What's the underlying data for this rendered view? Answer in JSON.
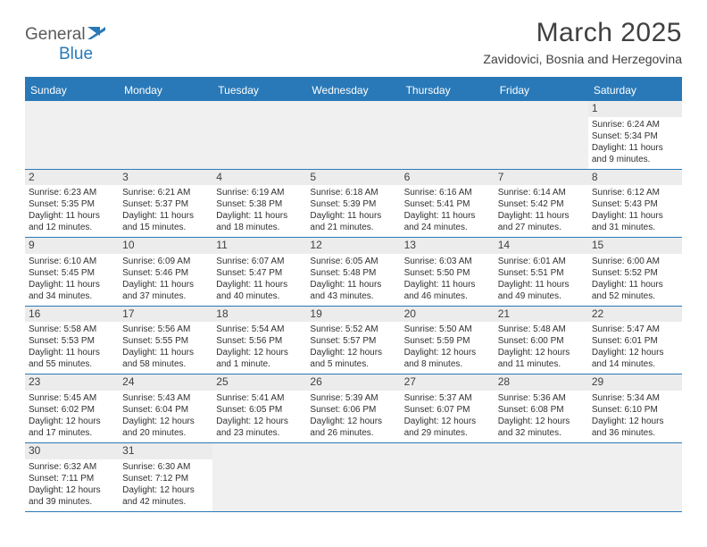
{
  "logo": {
    "text1": "General",
    "text2": "Blue"
  },
  "title": "March 2025",
  "location": "Zavidovici, Bosnia and Herzegovina",
  "colors": {
    "accent": "#2979b8",
    "text": "#404040",
    "bg": "#ffffff",
    "cellHeaderBg": "#ececec",
    "emptyBg": "#f0f0f0"
  },
  "weekdays": [
    "Sunday",
    "Monday",
    "Tuesday",
    "Wednesday",
    "Thursday",
    "Friday",
    "Saturday"
  ],
  "rows": [
    [
      null,
      null,
      null,
      null,
      null,
      null,
      {
        "d": "1",
        "sr": "Sunrise: 6:24 AM",
        "ss": "Sunset: 5:34 PM",
        "dl1": "Daylight: 11 hours",
        "dl2": "and 9 minutes."
      }
    ],
    [
      {
        "d": "2",
        "sr": "Sunrise: 6:23 AM",
        "ss": "Sunset: 5:35 PM",
        "dl1": "Daylight: 11 hours",
        "dl2": "and 12 minutes."
      },
      {
        "d": "3",
        "sr": "Sunrise: 6:21 AM",
        "ss": "Sunset: 5:37 PM",
        "dl1": "Daylight: 11 hours",
        "dl2": "and 15 minutes."
      },
      {
        "d": "4",
        "sr": "Sunrise: 6:19 AM",
        "ss": "Sunset: 5:38 PM",
        "dl1": "Daylight: 11 hours",
        "dl2": "and 18 minutes."
      },
      {
        "d": "5",
        "sr": "Sunrise: 6:18 AM",
        "ss": "Sunset: 5:39 PM",
        "dl1": "Daylight: 11 hours",
        "dl2": "and 21 minutes."
      },
      {
        "d": "6",
        "sr": "Sunrise: 6:16 AM",
        "ss": "Sunset: 5:41 PM",
        "dl1": "Daylight: 11 hours",
        "dl2": "and 24 minutes."
      },
      {
        "d": "7",
        "sr": "Sunrise: 6:14 AM",
        "ss": "Sunset: 5:42 PM",
        "dl1": "Daylight: 11 hours",
        "dl2": "and 27 minutes."
      },
      {
        "d": "8",
        "sr": "Sunrise: 6:12 AM",
        "ss": "Sunset: 5:43 PM",
        "dl1": "Daylight: 11 hours",
        "dl2": "and 31 minutes."
      }
    ],
    [
      {
        "d": "9",
        "sr": "Sunrise: 6:10 AM",
        "ss": "Sunset: 5:45 PM",
        "dl1": "Daylight: 11 hours",
        "dl2": "and 34 minutes."
      },
      {
        "d": "10",
        "sr": "Sunrise: 6:09 AM",
        "ss": "Sunset: 5:46 PM",
        "dl1": "Daylight: 11 hours",
        "dl2": "and 37 minutes."
      },
      {
        "d": "11",
        "sr": "Sunrise: 6:07 AM",
        "ss": "Sunset: 5:47 PM",
        "dl1": "Daylight: 11 hours",
        "dl2": "and 40 minutes."
      },
      {
        "d": "12",
        "sr": "Sunrise: 6:05 AM",
        "ss": "Sunset: 5:48 PM",
        "dl1": "Daylight: 11 hours",
        "dl2": "and 43 minutes."
      },
      {
        "d": "13",
        "sr": "Sunrise: 6:03 AM",
        "ss": "Sunset: 5:50 PM",
        "dl1": "Daylight: 11 hours",
        "dl2": "and 46 minutes."
      },
      {
        "d": "14",
        "sr": "Sunrise: 6:01 AM",
        "ss": "Sunset: 5:51 PM",
        "dl1": "Daylight: 11 hours",
        "dl2": "and 49 minutes."
      },
      {
        "d": "15",
        "sr": "Sunrise: 6:00 AM",
        "ss": "Sunset: 5:52 PM",
        "dl1": "Daylight: 11 hours",
        "dl2": "and 52 minutes."
      }
    ],
    [
      {
        "d": "16",
        "sr": "Sunrise: 5:58 AM",
        "ss": "Sunset: 5:53 PM",
        "dl1": "Daylight: 11 hours",
        "dl2": "and 55 minutes."
      },
      {
        "d": "17",
        "sr": "Sunrise: 5:56 AM",
        "ss": "Sunset: 5:55 PM",
        "dl1": "Daylight: 11 hours",
        "dl2": "and 58 minutes."
      },
      {
        "d": "18",
        "sr": "Sunrise: 5:54 AM",
        "ss": "Sunset: 5:56 PM",
        "dl1": "Daylight: 12 hours",
        "dl2": "and 1 minute."
      },
      {
        "d": "19",
        "sr": "Sunrise: 5:52 AM",
        "ss": "Sunset: 5:57 PM",
        "dl1": "Daylight: 12 hours",
        "dl2": "and 5 minutes."
      },
      {
        "d": "20",
        "sr": "Sunrise: 5:50 AM",
        "ss": "Sunset: 5:59 PM",
        "dl1": "Daylight: 12 hours",
        "dl2": "and 8 minutes."
      },
      {
        "d": "21",
        "sr": "Sunrise: 5:48 AM",
        "ss": "Sunset: 6:00 PM",
        "dl1": "Daylight: 12 hours",
        "dl2": "and 11 minutes."
      },
      {
        "d": "22",
        "sr": "Sunrise: 5:47 AM",
        "ss": "Sunset: 6:01 PM",
        "dl1": "Daylight: 12 hours",
        "dl2": "and 14 minutes."
      }
    ],
    [
      {
        "d": "23",
        "sr": "Sunrise: 5:45 AM",
        "ss": "Sunset: 6:02 PM",
        "dl1": "Daylight: 12 hours",
        "dl2": "and 17 minutes."
      },
      {
        "d": "24",
        "sr": "Sunrise: 5:43 AM",
        "ss": "Sunset: 6:04 PM",
        "dl1": "Daylight: 12 hours",
        "dl2": "and 20 minutes."
      },
      {
        "d": "25",
        "sr": "Sunrise: 5:41 AM",
        "ss": "Sunset: 6:05 PM",
        "dl1": "Daylight: 12 hours",
        "dl2": "and 23 minutes."
      },
      {
        "d": "26",
        "sr": "Sunrise: 5:39 AM",
        "ss": "Sunset: 6:06 PM",
        "dl1": "Daylight: 12 hours",
        "dl2": "and 26 minutes."
      },
      {
        "d": "27",
        "sr": "Sunrise: 5:37 AM",
        "ss": "Sunset: 6:07 PM",
        "dl1": "Daylight: 12 hours",
        "dl2": "and 29 minutes."
      },
      {
        "d": "28",
        "sr": "Sunrise: 5:36 AM",
        "ss": "Sunset: 6:08 PM",
        "dl1": "Daylight: 12 hours",
        "dl2": "and 32 minutes."
      },
      {
        "d": "29",
        "sr": "Sunrise: 5:34 AM",
        "ss": "Sunset: 6:10 PM",
        "dl1": "Daylight: 12 hours",
        "dl2": "and 36 minutes."
      }
    ],
    [
      {
        "d": "30",
        "sr": "Sunrise: 6:32 AM",
        "ss": "Sunset: 7:11 PM",
        "dl1": "Daylight: 12 hours",
        "dl2": "and 39 minutes."
      },
      {
        "d": "31",
        "sr": "Sunrise: 6:30 AM",
        "ss": "Sunset: 7:12 PM",
        "dl1": "Daylight: 12 hours",
        "dl2": "and 42 minutes."
      },
      null,
      null,
      null,
      null,
      null
    ]
  ]
}
